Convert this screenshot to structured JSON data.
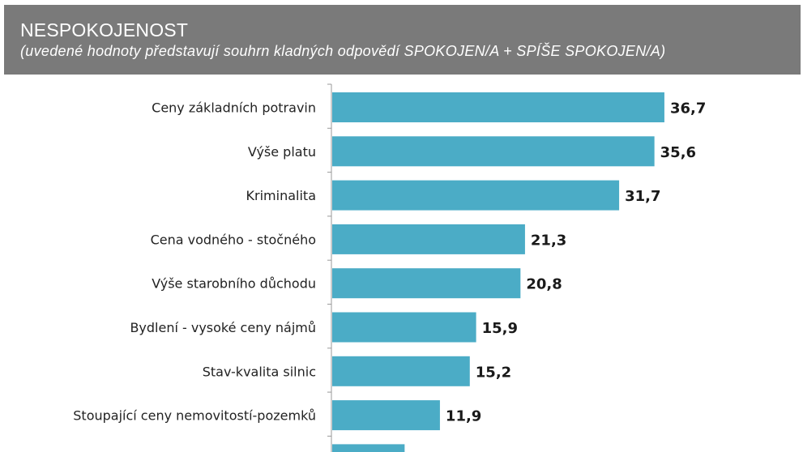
{
  "header": {
    "title": "NESPOKOJENOST",
    "subtitle": "(uvedené hodnoty představují souhrn kladných odpovědí SPOKOJEN/A + SPÍŠE SPOKOJEN/A)",
    "background": "#7a7a7a"
  },
  "chart_data": {
    "type": "bar",
    "orientation": "horizontal",
    "title": "NESPOKOJENOST",
    "subtitle": "(uvedené hodnoty představují souhrn kladných odpovědí SPOKOJEN/A + SPÍŠE SPOKOJEN/A)",
    "categories": [
      "Ceny základních potravin",
      "Výše platu",
      "Kriminalita",
      "Cena vodného - stočného",
      "Výše starobního důchodu",
      "Bydlení - vysoké ceny nájmů",
      "Stav-kvalita silnic",
      "Stoupající ceny nemovitostí-pozemků"
    ],
    "values": [
      36.7,
      35.6,
      31.7,
      21.3,
      20.8,
      15.9,
      15.2,
      11.9
    ],
    "value_labels": [
      "36,7",
      "35,6",
      "31,7",
      "21,3",
      "20,8",
      "15,9",
      "15,2",
      "11,9"
    ],
    "partially_visible_bar_value": 8,
    "bar_color": "#4bacc6",
    "xlim": [
      0,
      40
    ],
    "grid": false,
    "legend": "none"
  }
}
